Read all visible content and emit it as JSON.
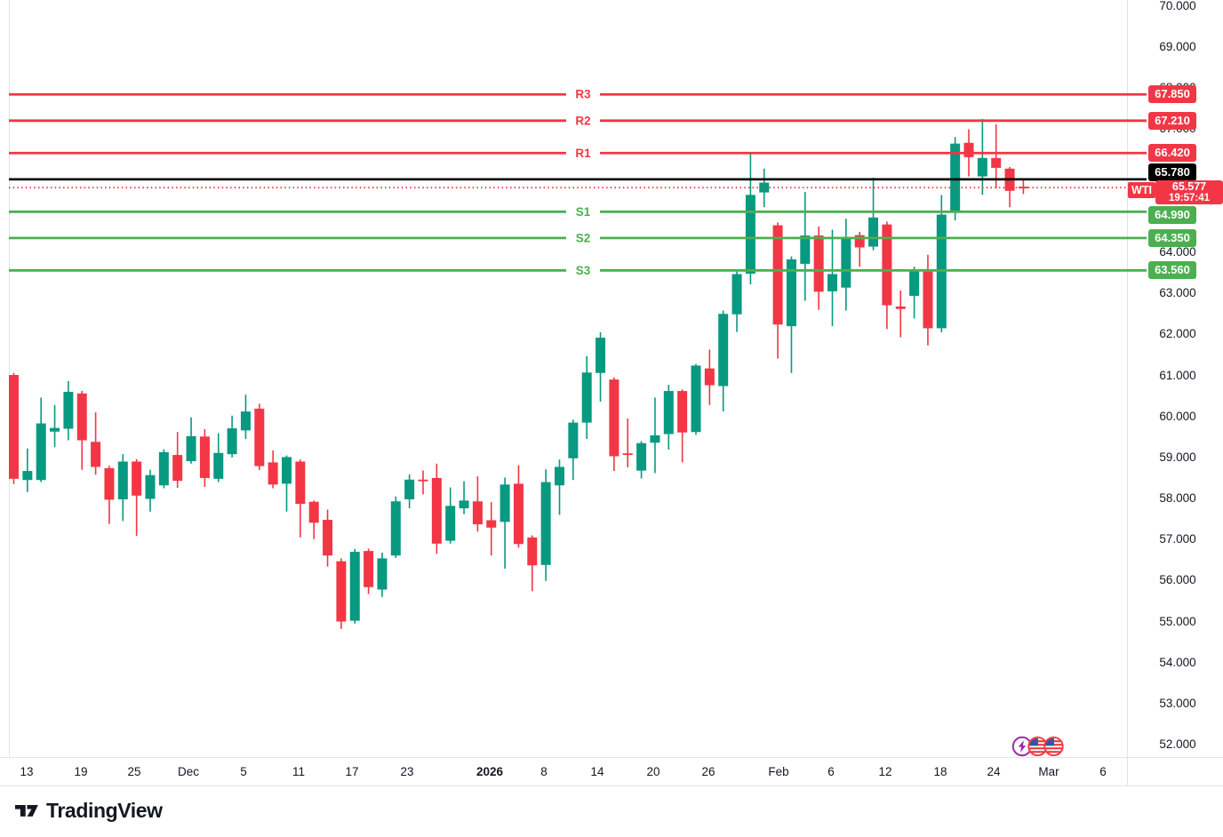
{
  "colors": {
    "up": "#089981",
    "down": "#F23645",
    "resistance": "#F23645",
    "support": "#4CAF50",
    "close_line": "#000000",
    "current_price": "#F23645",
    "axis_text": "#131722",
    "border": "#E0E3EB",
    "logo": "#131722",
    "event_purple": "#9C27B0",
    "flag_ring": "#F23645",
    "flag_canton": "#3457A0",
    "flag_stripe": "#E53935"
  },
  "footer": {
    "logo_text": "TradingView"
  },
  "events": {
    "icons": [
      "lightning-event-icon",
      "us-flag-event-icon",
      "us-flag-event-icon"
    ]
  },
  "chart_data": {
    "type": "candlestick",
    "symbol": "WTI",
    "ylim": [
      51.8,
      70.3
    ],
    "grid": "off",
    "y_ticks": [
      "70.000",
      "69.000",
      "68.000",
      "67.000",
      "66.000",
      "65.000",
      "64.000",
      "63.000",
      "62.000",
      "61.000",
      "60.000",
      "59.000",
      "58.000",
      "57.000",
      "56.000",
      "55.000",
      "54.000",
      "53.000",
      "52.000"
    ],
    "y_tick_values": [
      70,
      69,
      68,
      67,
      66,
      65,
      64,
      63,
      62,
      61,
      60,
      59,
      58,
      57,
      56,
      55,
      54,
      53,
      52
    ],
    "x_ticks": [
      {
        "label": "13",
        "x": 30
      },
      {
        "label": "19",
        "x": 91
      },
      {
        "label": "25",
        "x": 151
      },
      {
        "label": "Dec",
        "x": 212
      },
      {
        "label": "5",
        "x": 274
      },
      {
        "label": "11",
        "x": 336
      },
      {
        "label": "17",
        "x": 396
      },
      {
        "label": "23",
        "x": 458
      },
      {
        "label": "2026",
        "x": 551,
        "bold": true
      },
      {
        "label": "8",
        "x": 612
      },
      {
        "label": "14",
        "x": 672
      },
      {
        "label": "20",
        "x": 735
      },
      {
        "label": "26",
        "x": 797
      },
      {
        "label": "Feb",
        "x": 876
      },
      {
        "label": "6",
        "x": 935
      },
      {
        "label": "12",
        "x": 996
      },
      {
        "label": "18",
        "x": 1058
      },
      {
        "label": "24",
        "x": 1118
      },
      {
        "label": "Mar",
        "x": 1180
      },
      {
        "label": "6",
        "x": 1241
      }
    ],
    "levels": [
      {
        "id": "R3",
        "label": "R3",
        "value": 67.85,
        "display": "67.850",
        "kind": "resistance"
      },
      {
        "id": "R2",
        "label": "R2",
        "value": 67.21,
        "display": "67.210",
        "kind": "resistance"
      },
      {
        "id": "R1",
        "label": "R1",
        "value": 66.42,
        "display": "66.420",
        "kind": "resistance"
      },
      {
        "id": "S1",
        "label": "S1",
        "value": 64.99,
        "display": "64.990",
        "kind": "support"
      },
      {
        "id": "S2",
        "label": "S2",
        "value": 64.35,
        "display": "64.350",
        "kind": "support"
      },
      {
        "id": "S3",
        "label": "S3",
        "value": 63.56,
        "display": "63.560",
        "kind": "support"
      }
    ],
    "close_line": {
      "value": 65.78,
      "display": "65.780"
    },
    "last_price": {
      "value": 65.577,
      "display": "65.577",
      "time": "19:57:41",
      "symbol_tag": "WTI"
    },
    "candles_format": [
      "open",
      "high",
      "low",
      "close"
    ],
    "candles": [
      [
        61.01,
        61.06,
        58.35,
        58.48
      ],
      [
        58.45,
        59.22,
        58.16,
        58.67
      ],
      [
        58.45,
        60.46,
        58.4,
        59.83
      ],
      [
        59.63,
        60.28,
        59.25,
        59.72
      ],
      [
        59.7,
        60.86,
        59.42,
        60.6
      ],
      [
        60.56,
        60.62,
        58.7,
        59.42
      ],
      [
        59.38,
        60.1,
        58.58,
        58.77
      ],
      [
        58.74,
        58.8,
        57.38,
        57.97
      ],
      [
        57.98,
        59.08,
        57.45,
        58.9
      ],
      [
        58.9,
        58.96,
        57.09,
        58.07
      ],
      [
        57.99,
        58.7,
        57.68,
        58.57
      ],
      [
        58.32,
        59.2,
        58.25,
        59.13
      ],
      [
        59.06,
        59.62,
        58.26,
        58.43
      ],
      [
        58.91,
        59.98,
        58.85,
        59.52
      ],
      [
        59.51,
        59.69,
        58.28,
        58.5
      ],
      [
        58.48,
        59.59,
        58.4,
        59.11
      ],
      [
        59.08,
        60.02,
        59.0,
        59.71
      ],
      [
        59.66,
        60.53,
        59.45,
        60.12
      ],
      [
        60.19,
        60.31,
        58.69,
        58.79
      ],
      [
        58.88,
        59.17,
        58.25,
        58.34
      ],
      [
        58.36,
        59.05,
        57.68,
        59.01
      ],
      [
        58.9,
        58.95,
        57.05,
        57.87
      ],
      [
        57.92,
        57.95,
        57.01,
        57.41
      ],
      [
        57.48,
        57.73,
        56.34,
        56.61
      ],
      [
        56.47,
        56.54,
        54.82,
        55.0
      ],
      [
        55.02,
        56.77,
        54.95,
        56.7
      ],
      [
        56.72,
        56.78,
        55.67,
        55.84
      ],
      [
        55.78,
        56.68,
        55.6,
        56.54
      ],
      [
        56.61,
        58.05,
        56.55,
        57.93
      ],
      [
        57.98,
        58.59,
        57.76,
        58.46
      ],
      [
        58.46,
        58.68,
        58.1,
        58.42
      ],
      [
        58.5,
        58.85,
        56.65,
        56.9
      ],
      [
        56.97,
        58.27,
        56.9,
        57.82
      ],
      [
        57.76,
        58.42,
        57.62,
        57.95
      ],
      [
        57.93,
        58.54,
        57.19,
        57.37
      ],
      [
        57.47,
        57.91,
        56.61,
        57.29
      ],
      [
        57.43,
        58.51,
        56.29,
        58.34
      ],
      [
        58.36,
        58.81,
        56.8,
        56.89
      ],
      [
        57.05,
        57.1,
        55.74,
        56.37
      ],
      [
        56.38,
        58.71,
        55.99,
        58.4
      ],
      [
        58.32,
        58.95,
        57.6,
        58.77
      ],
      [
        58.98,
        59.92,
        58.45,
        59.85
      ],
      [
        59.85,
        61.47,
        59.45,
        61.07
      ],
      [
        61.06,
        62.05,
        60.36,
        61.92
      ],
      [
        60.9,
        60.95,
        58.67,
        59.03
      ],
      [
        59.1,
        59.95,
        58.76,
        59.07
      ],
      [
        58.68,
        59.4,
        58.49,
        59.35
      ],
      [
        59.36,
        60.46,
        58.62,
        59.54
      ],
      [
        59.57,
        60.77,
        59.19,
        60.62
      ],
      [
        60.62,
        60.66,
        58.88,
        59.61
      ],
      [
        59.62,
        61.28,
        59.55,
        61.24
      ],
      [
        61.17,
        61.63,
        60.28,
        60.76
      ],
      [
        60.74,
        62.58,
        60.12,
        62.5
      ],
      [
        62.49,
        63.53,
        62.06,
        63.47
      ],
      [
        63.48,
        66.41,
        63.22,
        65.4
      ],
      [
        65.46,
        66.04,
        65.1,
        65.7
      ],
      [
        64.66,
        64.73,
        61.41,
        62.24
      ],
      [
        62.2,
        63.9,
        61.06,
        63.83
      ],
      [
        63.72,
        65.47,
        62.82,
        64.41
      ],
      [
        64.41,
        64.63,
        62.6,
        63.04
      ],
      [
        63.05,
        64.55,
        62.2,
        63.47
      ],
      [
        63.14,
        64.82,
        62.58,
        64.37
      ],
      [
        64.42,
        64.5,
        63.65,
        64.12
      ],
      [
        64.14,
        65.82,
        64.05,
        64.85
      ],
      [
        64.68,
        64.75,
        62.13,
        62.71
      ],
      [
        62.68,
        63.07,
        61.93,
        62.62
      ],
      [
        62.94,
        63.65,
        62.39,
        63.58
      ],
      [
        63.53,
        63.94,
        61.73,
        62.15
      ],
      [
        62.15,
        65.4,
        62.05,
        64.92
      ],
      [
        64.97,
        66.81,
        64.78,
        66.65
      ],
      [
        66.67,
        67.0,
        65.85,
        66.32
      ],
      [
        65.85,
        67.25,
        65.4,
        66.3
      ],
      [
        66.3,
        67.12,
        65.56,
        66.06
      ],
      [
        66.04,
        66.08,
        65.1,
        65.5
      ],
      [
        65.6,
        65.78,
        65.42,
        65.58
      ]
    ]
  }
}
